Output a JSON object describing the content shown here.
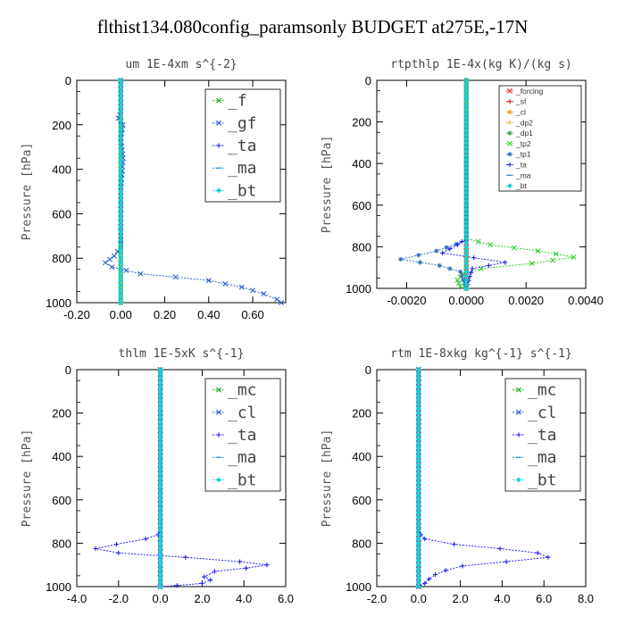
{
  "title": "flthist134.080config_paramsonly  BUDGET at275E,-17N",
  "chart_data": [
    {
      "type": "line",
      "title": "um   1E-4xm s^{-2}",
      "ylabel": "Pressure [hPa]",
      "xlim": [
        -0.2,
        0.75
      ],
      "ylim": [
        1000,
        0
      ],
      "xticks": [
        "-0.20",
        "0.00",
        "0.20",
        "0.40",
        "0.60"
      ],
      "xtick_values": [
        -0.2,
        0.0,
        0.2,
        0.4,
        0.6
      ],
      "yticks": [
        "0",
        "200",
        "400",
        "600",
        "800",
        "1000"
      ],
      "ytick_values": [
        0,
        200,
        400,
        600,
        800,
        1000
      ],
      "legend_style": "big",
      "series": [
        {
          "name": "_f",
          "color": "#22aa22",
          "marker": "x",
          "points": [
            [
              0,
              0
            ],
            [
              0,
              1000
            ]
          ]
        },
        {
          "name": "_gf",
          "color": "#3060d0",
          "marker": "x",
          "points": [
            [
              0,
              0
            ],
            [
              0,
              140
            ],
            [
              -0.01,
              170
            ],
            [
              0.01,
              200
            ],
            [
              0,
              260
            ],
            [
              0.01,
              350
            ],
            [
              0,
              500
            ],
            [
              0,
              700
            ],
            [
              0,
              750
            ],
            [
              -0.03,
              790
            ],
            [
              -0.07,
              820
            ],
            [
              -0.04,
              840
            ],
            [
              0.09,
              870
            ],
            [
              0.25,
              885
            ],
            [
              0.4,
              900
            ],
            [
              0.55,
              930
            ],
            [
              0.65,
              960
            ],
            [
              0.71,
              985
            ],
            [
              0.73,
              1000
            ]
          ]
        },
        {
          "name": "_ta",
          "color": "#2020ee",
          "marker": "plus",
          "points": [
            [
              0,
              0
            ],
            [
              0,
              1000
            ]
          ]
        },
        {
          "name": "_ma",
          "color": "#2090e0",
          "marker": "dash",
          "points": [
            [
              0,
              0
            ],
            [
              0,
              1000
            ]
          ]
        },
        {
          "name": "_bt",
          "color": "#10d0d0",
          "marker": "diamond",
          "points": [
            [
              0,
              0
            ],
            [
              0,
              1000
            ]
          ]
        }
      ]
    },
    {
      "type": "line",
      "title": "rtpthlp   1E-4x(kg K)/(kg s)",
      "ylabel": "Pressure [hPa]",
      "xlim": [
        -0.003,
        0.004
      ],
      "ylim": [
        1000,
        0
      ],
      "xticks": [
        "-0.0020",
        "0.0000",
        "0.0020",
        "0.0040"
      ],
      "xtick_values": [
        -0.002,
        0.0,
        0.002,
        0.004
      ],
      "yticks": [
        "0",
        "200",
        "400",
        "600",
        "800",
        "1000"
      ],
      "ytick_values": [
        0,
        200,
        400,
        600,
        800,
        1000
      ],
      "legend_style": "small",
      "series": [
        {
          "name": "_forcing",
          "color": "#dd2222",
          "marker": "x",
          "points": [
            [
              0,
              0
            ],
            [
              0,
              1000
            ]
          ]
        },
        {
          "name": "_sf",
          "color": "#cc2222",
          "marker": "plus",
          "points": [
            [
              0,
              0
            ],
            [
              0,
              1000
            ]
          ]
        },
        {
          "name": "_cl",
          "color": "#e6a020",
          "marker": "star",
          "points": [
            [
              0,
              0
            ],
            [
              0,
              1000
            ]
          ]
        },
        {
          "name": "_dp2",
          "color": "#e0c040",
          "marker": "plus",
          "points": [
            [
              0,
              0
            ],
            [
              0,
              1000
            ]
          ]
        },
        {
          "name": "_dp1",
          "color": "#3aa050",
          "marker": "star",
          "points": [
            [
              0,
              0
            ],
            [
              0,
              1000
            ]
          ]
        },
        {
          "name": "_tp2",
          "color": "#33cc33",
          "marker": "x",
          "points": [
            [
              0,
              0
            ],
            [
              0,
              760
            ],
            [
              0.0008,
              790
            ],
            [
              0.0024,
              820
            ],
            [
              0.0036,
              850
            ],
            [
              0.0022,
              880
            ],
            [
              0.0005,
              905
            ],
            [
              -0.0001,
              930
            ],
            [
              -0.0003,
              960
            ],
            [
              -0.0002,
              990
            ],
            [
              0,
              1000
            ]
          ]
        },
        {
          "name": "_tp1",
          "color": "#3070c0",
          "marker": "star",
          "points": [
            [
              0,
              0
            ],
            [
              0,
              770
            ],
            [
              -0.001,
              820
            ],
            [
              -0.0022,
              860
            ],
            [
              -0.0009,
              890
            ],
            [
              -0.0002,
              920
            ],
            [
              0,
              1000
            ]
          ]
        },
        {
          "name": "_ta",
          "color": "#2020ee",
          "marker": "plus",
          "points": [
            [
              0,
              0
            ],
            [
              0,
              760
            ],
            [
              -0.0003,
              790
            ],
            [
              -0.0008,
              830
            ],
            [
              0.0013,
              875
            ],
            [
              0.0002,
              905
            ],
            [
              0,
              1000
            ]
          ]
        },
        {
          "name": "_ma",
          "color": "#2090e0",
          "marker": "dash",
          "points": [
            [
              0,
              0
            ],
            [
              0,
              1000
            ]
          ]
        },
        {
          "name": "_bt",
          "color": "#10d0d0",
          "marker": "diamond",
          "points": [
            [
              0,
              0
            ],
            [
              0,
              1000
            ]
          ]
        }
      ]
    },
    {
      "type": "line",
      "title": "thlm   1E-5xK s^{-1}",
      "ylabel": "Pressure [hPa]",
      "xlim": [
        -4.0,
        6.0
      ],
      "ylim": [
        1000,
        0
      ],
      "xticks": [
        "-4.0",
        "-2.0",
        "0.0",
        "2.0",
        "4.0",
        "6.0"
      ],
      "xtick_values": [
        -4,
        -2,
        0,
        2,
        4,
        6
      ],
      "yticks": [
        "0",
        "200",
        "400",
        "600",
        "800",
        "1000"
      ],
      "ytick_values": [
        0,
        200,
        400,
        600,
        800,
        1000
      ],
      "legend_style": "big",
      "series": [
        {
          "name": "_mc",
          "color": "#22aa22",
          "marker": "x",
          "points": [
            [
              0,
              0
            ],
            [
              0,
              1000
            ]
          ]
        },
        {
          "name": "_cl",
          "color": "#3060d0",
          "marker": "x",
          "points": [
            [
              0,
              0
            ],
            [
              0,
              1000
            ]
          ]
        },
        {
          "name": "_ta",
          "color": "#2020ee",
          "marker": "plus",
          "points": [
            [
              0,
              0
            ],
            [
              0,
              740
            ],
            [
              -0.1,
              760
            ],
            [
              -0.7,
              780
            ],
            [
              -2.1,
              805
            ],
            [
              -3.1,
              825
            ],
            [
              -2.0,
              845
            ],
            [
              1.2,
              865
            ],
            [
              3.8,
              885
            ],
            [
              5.1,
              900
            ],
            [
              4.1,
              915
            ],
            [
              2.6,
              930
            ],
            [
              2.1,
              955
            ],
            [
              2.4,
              970
            ],
            [
              2.0,
              985
            ],
            [
              0.8,
              995
            ],
            [
              0,
              1000
            ]
          ]
        },
        {
          "name": "_ma",
          "color": "#2090e0",
          "marker": "dash",
          "points": [
            [
              0,
              0
            ],
            [
              0,
              1000
            ]
          ]
        },
        {
          "name": "_bt",
          "color": "#10d0d0",
          "marker": "diamond",
          "points": [
            [
              0,
              0
            ],
            [
              0,
              1000
            ]
          ]
        }
      ]
    },
    {
      "type": "line",
      "title": "rtm   1E-8xkg kg^{-1} s^{-1}",
      "ylabel": "Pressure [hPa]",
      "xlim": [
        -2.0,
        8.0
      ],
      "ylim": [
        1000,
        0
      ],
      "xticks": [
        "-2.0",
        "0.0",
        "2.0",
        "4.0",
        "6.0",
        "8.0"
      ],
      "xtick_values": [
        -2,
        0,
        2,
        4,
        6,
        8
      ],
      "yticks": [
        "0",
        "200",
        "400",
        "600",
        "800",
        "1000"
      ],
      "ytick_values": [
        0,
        200,
        400,
        600,
        800,
        1000
      ],
      "legend_style": "big",
      "series": [
        {
          "name": "_mc",
          "color": "#22aa22",
          "marker": "x",
          "points": [
            [
              0,
              0
            ],
            [
              0,
              1000
            ]
          ]
        },
        {
          "name": "_cl",
          "color": "#3060d0",
          "marker": "x",
          "points": [
            [
              0,
              0
            ],
            [
              0,
              1000
            ]
          ]
        },
        {
          "name": "_ta",
          "color": "#2020ee",
          "marker": "plus",
          "points": [
            [
              0,
              0
            ],
            [
              0,
              740
            ],
            [
              0.1,
              760
            ],
            [
              0.3,
              780
            ],
            [
              1.7,
              805
            ],
            [
              3.9,
              825
            ],
            [
              5.7,
              845
            ],
            [
              6.2,
              865
            ],
            [
              4.2,
              885
            ],
            [
              2.1,
              905
            ],
            [
              1.3,
              925
            ],
            [
              0.8,
              945
            ],
            [
              0.5,
              965
            ],
            [
              0.3,
              985
            ],
            [
              0,
              1000
            ]
          ]
        },
        {
          "name": "_ma",
          "color": "#2090e0",
          "marker": "dash",
          "points": [
            [
              0,
              0
            ],
            [
              0,
              1000
            ]
          ]
        },
        {
          "name": "_bt",
          "color": "#10d0d0",
          "marker": "diamond",
          "points": [
            [
              0,
              0
            ],
            [
              0,
              1000
            ]
          ]
        }
      ]
    }
  ]
}
